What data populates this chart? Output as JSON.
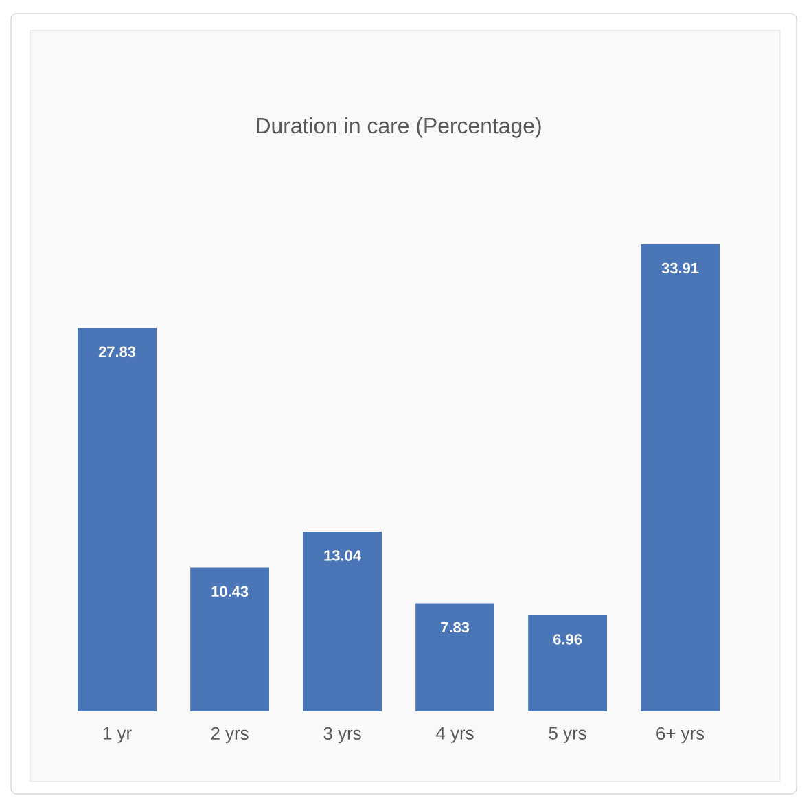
{
  "chart_data": {
    "type": "bar",
    "title": "Duration in care (Percentage)",
    "categories": [
      "1 yr",
      "2 yrs",
      "3 yrs",
      "4 yrs",
      "5 yrs",
      "6+ yrs"
    ],
    "values": [
      27.83,
      10.43,
      13.04,
      7.83,
      6.96,
      33.91
    ],
    "color": "#4a76b8",
    "data_labels": true
  }
}
